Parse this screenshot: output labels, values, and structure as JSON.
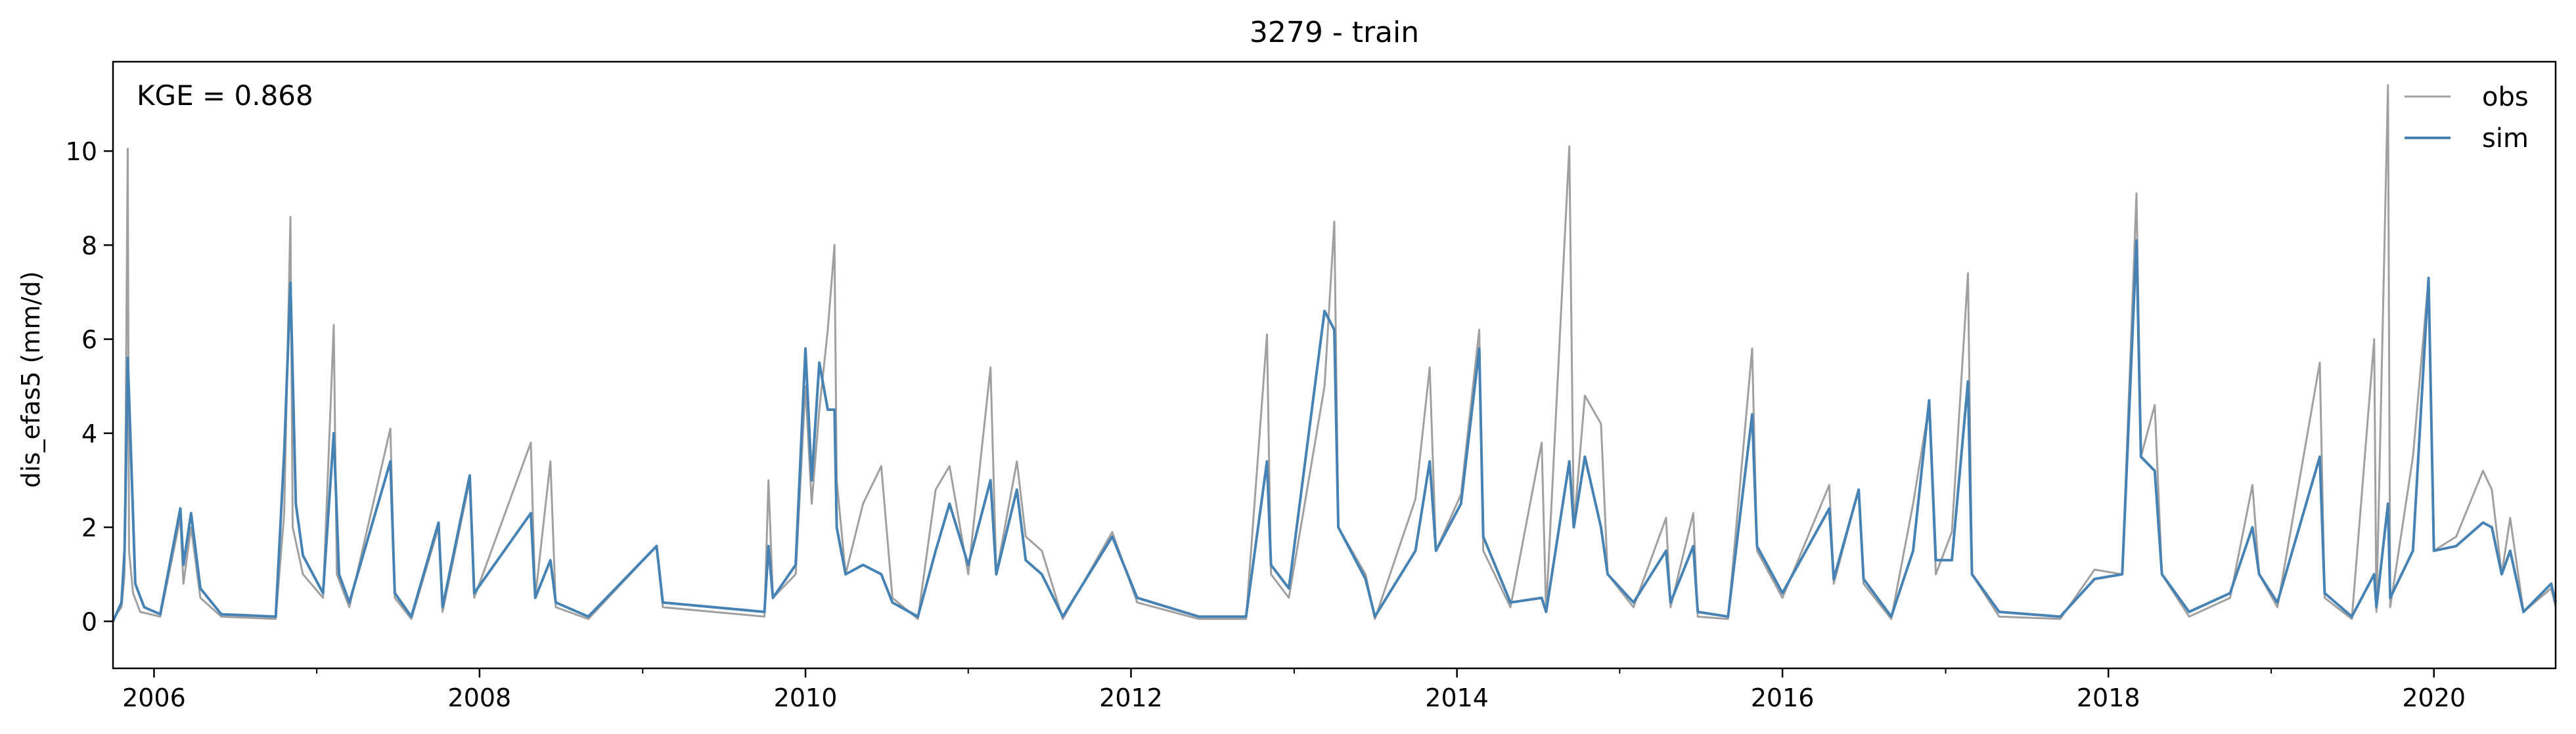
{
  "chart_data": {
    "type": "line",
    "title": "3279 - train",
    "xlabel": "",
    "ylabel": "dis_efas5 (mm/d)",
    "annotation": "KGE = 0.868",
    "x_axis": {
      "kind": "date",
      "range": [
        "2005-10-01",
        "2020-09-30"
      ],
      "ticks": [
        "2006-01-01",
        "2008-01-01",
        "2010-01-01",
        "2012-01-01",
        "2014-01-01",
        "2016-01-01",
        "2018-01-01",
        "2020-01-01"
      ],
      "tick_labels": [
        "2006",
        "2008",
        "2010",
        "2012",
        "2014",
        "2016",
        "2018",
        "2020"
      ]
    },
    "ylim": [
      -1,
      11.9
    ],
    "yticks": [
      0,
      2,
      4,
      6,
      8,
      10
    ],
    "ytick_labels": [
      "0",
      "2",
      "4",
      "6",
      "8",
      "10"
    ],
    "grid": false,
    "legend": "top-right",
    "series": [
      {
        "name": "obs",
        "color": "#a0a0a0",
        "points": [
          [
            "2005-10-01",
            0.05
          ],
          [
            "2005-10-20",
            0.3
          ],
          [
            "2005-10-27",
            1.0
          ],
          [
            "2005-11-03",
            10.05
          ],
          [
            "2005-11-06",
            1.5
          ],
          [
            "2005-11-15",
            0.6
          ],
          [
            "2005-12-01",
            0.2
          ],
          [
            "2006-01-15",
            0.1
          ],
          [
            "2006-03-01",
            2.2
          ],
          [
            "2006-03-08",
            0.8
          ],
          [
            "2006-03-25",
            2.0
          ],
          [
            "2006-04-15",
            0.5
          ],
          [
            "2006-06-01",
            0.1
          ],
          [
            "2006-10-01",
            0.05
          ],
          [
            "2006-10-20",
            2.3
          ],
          [
            "2006-11-03",
            8.6
          ],
          [
            "2006-11-08",
            2.0
          ],
          [
            "2006-12-01",
            1.0
          ],
          [
            "2007-01-15",
            0.5
          ],
          [
            "2007-02-08",
            6.3
          ],
          [
            "2007-02-15",
            1.0
          ],
          [
            "2007-03-15",
            0.3
          ],
          [
            "2007-06-15",
            4.1
          ],
          [
            "2007-06-25",
            0.5
          ],
          [
            "2007-08-01",
            0.05
          ],
          [
            "2007-10-01",
            2.0
          ],
          [
            "2007-10-10",
            0.2
          ],
          [
            "2007-12-10",
            3.0
          ],
          [
            "2007-12-20",
            0.5
          ],
          [
            "2008-04-25",
            3.8
          ],
          [
            "2008-05-05",
            0.5
          ],
          [
            "2008-06-08",
            3.4
          ],
          [
            "2008-06-20",
            0.3
          ],
          [
            "2008-09-01",
            0.05
          ],
          [
            "2009-02-01",
            1.6
          ],
          [
            "2009-02-15",
            0.3
          ],
          [
            "2009-10-01",
            0.1
          ],
          [
            "2009-10-10",
            3.0
          ],
          [
            "2009-10-20",
            0.5
          ],
          [
            "2009-12-10",
            1.0
          ],
          [
            "2010-01-01",
            5.0
          ],
          [
            "2010-01-15",
            2.5
          ],
          [
            "2010-02-01",
            4.5
          ],
          [
            "2010-02-20",
            6.2
          ],
          [
            "2010-03-07",
            8.0
          ],
          [
            "2010-03-12",
            3.0
          ],
          [
            "2010-04-01",
            1.0
          ],
          [
            "2010-05-10",
            2.5
          ],
          [
            "2010-06-20",
            3.3
          ],
          [
            "2010-07-15",
            0.5
          ],
          [
            "2010-09-10",
            0.05
          ],
          [
            "2010-10-20",
            2.8
          ],
          [
            "2010-11-20",
            3.3
          ],
          [
            "2011-01-01",
            1.0
          ],
          [
            "2011-02-20",
            5.4
          ],
          [
            "2011-03-05",
            1.0
          ],
          [
            "2011-04-20",
            3.4
          ],
          [
            "2011-05-10",
            1.8
          ],
          [
            "2011-06-15",
            1.5
          ],
          [
            "2011-08-01",
            0.05
          ],
          [
            "2011-11-20",
            1.9
          ],
          [
            "2012-01-15",
            0.4
          ],
          [
            "2012-06-01",
            0.05
          ],
          [
            "2012-09-15",
            0.05
          ],
          [
            "2012-11-01",
            6.1
          ],
          [
            "2012-11-10",
            1.0
          ],
          [
            "2012-12-20",
            0.5
          ],
          [
            "2013-03-10",
            5.0
          ],
          [
            "2013-04-01",
            8.5
          ],
          [
            "2013-04-10",
            2.0
          ],
          [
            "2013-06-10",
            1.0
          ],
          [
            "2013-07-01",
            0.05
          ],
          [
            "2013-09-30",
            2.6
          ],
          [
            "2013-11-01",
            5.4
          ],
          [
            "2013-11-15",
            1.5
          ],
          [
            "2014-01-10",
            2.7
          ],
          [
            "2014-02-20",
            6.2
          ],
          [
            "2014-03-01",
            1.5
          ],
          [
            "2014-05-01",
            0.3
          ],
          [
            "2014-07-10",
            3.8
          ],
          [
            "2014-07-20",
            0.2
          ],
          [
            "2014-09-10",
            10.1
          ],
          [
            "2014-09-20",
            2.0
          ],
          [
            "2014-10-15",
            4.8
          ],
          [
            "2014-11-20",
            4.2
          ],
          [
            "2014-12-05",
            1.0
          ],
          [
            "2015-02-01",
            0.3
          ],
          [
            "2015-04-15",
            2.2
          ],
          [
            "2015-04-25",
            0.3
          ],
          [
            "2015-06-15",
            2.3
          ],
          [
            "2015-06-25",
            0.1
          ],
          [
            "2015-09-01",
            0.05
          ],
          [
            "2015-10-25",
            5.8
          ],
          [
            "2015-11-05",
            1.5
          ],
          [
            "2016-01-01",
            0.5
          ],
          [
            "2016-04-15",
            2.9
          ],
          [
            "2016-04-25",
            0.8
          ],
          [
            "2016-06-20",
            2.8
          ],
          [
            "2016-07-01",
            0.8
          ],
          [
            "2016-09-01",
            0.05
          ],
          [
            "2016-10-20",
            2.5
          ],
          [
            "2016-11-25",
            4.6
          ],
          [
            "2016-12-10",
            1.0
          ],
          [
            "2017-01-15",
            1.9
          ],
          [
            "2017-02-20",
            7.4
          ],
          [
            "2017-03-01",
            1.0
          ],
          [
            "2017-05-01",
            0.1
          ],
          [
            "2017-09-15",
            0.05
          ],
          [
            "2017-12-01",
            1.1
          ],
          [
            "2018-02-01",
            1.0
          ],
          [
            "2018-03-05",
            9.1
          ],
          [
            "2018-03-15",
            3.5
          ],
          [
            "2018-04-15",
            4.6
          ],
          [
            "2018-05-01",
            1.0
          ],
          [
            "2018-07-01",
            0.1
          ],
          [
            "2018-10-01",
            0.5
          ],
          [
            "2018-11-20",
            2.9
          ],
          [
            "2018-12-05",
            1.0
          ],
          [
            "2019-01-15",
            0.3
          ],
          [
            "2019-04-20",
            5.5
          ],
          [
            "2019-05-01",
            0.5
          ],
          [
            "2019-07-01",
            0.05
          ],
          [
            "2019-08-20",
            6.0
          ],
          [
            "2019-08-25",
            0.2
          ],
          [
            "2019-09-20",
            11.4
          ],
          [
            "2019-09-25",
            0.3
          ],
          [
            "2019-11-15",
            3.5
          ],
          [
            "2019-12-20",
            7.3
          ],
          [
            "2020-01-01",
            1.5
          ],
          [
            "2020-02-20",
            1.8
          ],
          [
            "2020-04-20",
            3.2
          ],
          [
            "2020-05-10",
            2.8
          ],
          [
            "2020-06-01",
            1.0
          ],
          [
            "2020-06-20",
            2.2
          ],
          [
            "2020-07-20",
            0.2
          ],
          [
            "2020-09-20",
            0.7
          ],
          [
            "2020-09-30",
            0.3
          ]
        ]
      },
      {
        "name": "sim",
        "color": "#4682b4",
        "points": [
          [
            "2005-10-01",
            0.0
          ],
          [
            "2005-10-20",
            0.4
          ],
          [
            "2005-10-27",
            1.5
          ],
          [
            "2005-11-03",
            5.6
          ],
          [
            "2005-11-10",
            3.7
          ],
          [
            "2005-11-20",
            0.8
          ],
          [
            "2005-12-10",
            0.3
          ],
          [
            "2006-01-15",
            0.15
          ],
          [
            "2006-03-01",
            2.4
          ],
          [
            "2006-03-08",
            1.2
          ],
          [
            "2006-03-25",
            2.3
          ],
          [
            "2006-04-15",
            0.7
          ],
          [
            "2006-06-01",
            0.15
          ],
          [
            "2006-10-01",
            0.1
          ],
          [
            "2006-10-20",
            3.6
          ],
          [
            "2006-11-03",
            7.2
          ],
          [
            "2006-11-15",
            2.5
          ],
          [
            "2006-12-01",
            1.4
          ],
          [
            "2007-01-15",
            0.6
          ],
          [
            "2007-02-08",
            4.0
          ],
          [
            "2007-02-20",
            1.0
          ],
          [
            "2007-03-15",
            0.4
          ],
          [
            "2007-06-15",
            3.4
          ],
          [
            "2007-06-25",
            0.6
          ],
          [
            "2007-08-01",
            0.1
          ],
          [
            "2007-10-01",
            2.1
          ],
          [
            "2007-10-10",
            0.3
          ],
          [
            "2007-12-10",
            3.1
          ],
          [
            "2007-12-20",
            0.6
          ],
          [
            "2008-04-25",
            2.3
          ],
          [
            "2008-05-05",
            0.5
          ],
          [
            "2008-06-08",
            1.3
          ],
          [
            "2008-06-20",
            0.4
          ],
          [
            "2008-09-01",
            0.1
          ],
          [
            "2009-02-01",
            1.6
          ],
          [
            "2009-02-15",
            0.4
          ],
          [
            "2009-10-01",
            0.2
          ],
          [
            "2009-10-10",
            1.6
          ],
          [
            "2009-10-20",
            0.5
          ],
          [
            "2009-12-10",
            1.2
          ],
          [
            "2010-01-01",
            5.8
          ],
          [
            "2010-01-15",
            3.0
          ],
          [
            "2010-02-01",
            5.5
          ],
          [
            "2010-02-20",
            4.5
          ],
          [
            "2010-03-07",
            4.5
          ],
          [
            "2010-03-12",
            2.0
          ],
          [
            "2010-04-01",
            1.0
          ],
          [
            "2010-05-10",
            1.2
          ],
          [
            "2010-06-20",
            1.0
          ],
          [
            "2010-07-15",
            0.4
          ],
          [
            "2010-09-10",
            0.1
          ],
          [
            "2010-10-20",
            1.5
          ],
          [
            "2010-11-20",
            2.5
          ],
          [
            "2011-01-01",
            1.2
          ],
          [
            "2011-02-20",
            3.0
          ],
          [
            "2011-03-05",
            1.0
          ],
          [
            "2011-04-20",
            2.8
          ],
          [
            "2011-05-10",
            1.3
          ],
          [
            "2011-06-15",
            1.0
          ],
          [
            "2011-08-01",
            0.1
          ],
          [
            "2011-11-20",
            1.8
          ],
          [
            "2012-01-15",
            0.5
          ],
          [
            "2012-06-01",
            0.1
          ],
          [
            "2012-09-15",
            0.1
          ],
          [
            "2012-11-01",
            3.4
          ],
          [
            "2012-11-10",
            1.2
          ],
          [
            "2012-12-20",
            0.7
          ],
          [
            "2013-03-10",
            6.6
          ],
          [
            "2013-04-01",
            6.2
          ],
          [
            "2013-04-10",
            2.0
          ],
          [
            "2013-06-10",
            0.9
          ],
          [
            "2013-07-01",
            0.1
          ],
          [
            "2013-09-30",
            1.5
          ],
          [
            "2013-11-01",
            3.4
          ],
          [
            "2013-11-15",
            1.5
          ],
          [
            "2014-01-10",
            2.5
          ],
          [
            "2014-02-20",
            5.8
          ],
          [
            "2014-03-01",
            1.8
          ],
          [
            "2014-05-01",
            0.4
          ],
          [
            "2014-07-10",
            0.5
          ],
          [
            "2014-07-20",
            0.2
          ],
          [
            "2014-09-10",
            3.4
          ],
          [
            "2014-09-20",
            2.0
          ],
          [
            "2014-10-15",
            3.5
          ],
          [
            "2014-11-20",
            2.0
          ],
          [
            "2014-12-05",
            1.0
          ],
          [
            "2015-02-01",
            0.4
          ],
          [
            "2015-04-15",
            1.5
          ],
          [
            "2015-04-25",
            0.4
          ],
          [
            "2015-06-15",
            1.6
          ],
          [
            "2015-06-25",
            0.2
          ],
          [
            "2015-09-01",
            0.1
          ],
          [
            "2015-10-25",
            4.4
          ],
          [
            "2015-11-05",
            1.6
          ],
          [
            "2016-01-01",
            0.6
          ],
          [
            "2016-04-15",
            2.4
          ],
          [
            "2016-04-25",
            0.9
          ],
          [
            "2016-06-20",
            2.8
          ],
          [
            "2016-07-01",
            0.9
          ],
          [
            "2016-09-01",
            0.1
          ],
          [
            "2016-10-20",
            1.5
          ],
          [
            "2016-11-25",
            4.7
          ],
          [
            "2016-12-10",
            1.3
          ],
          [
            "2017-01-15",
            1.3
          ],
          [
            "2017-02-20",
            5.1
          ],
          [
            "2017-03-01",
            1.0
          ],
          [
            "2017-05-01",
            0.2
          ],
          [
            "2017-09-15",
            0.1
          ],
          [
            "2017-12-01",
            0.9
          ],
          [
            "2018-02-01",
            1.0
          ],
          [
            "2018-03-05",
            8.1
          ],
          [
            "2018-03-15",
            3.5
          ],
          [
            "2018-04-15",
            3.2
          ],
          [
            "2018-05-01",
            1.0
          ],
          [
            "2018-07-01",
            0.2
          ],
          [
            "2018-10-01",
            0.6
          ],
          [
            "2018-11-20",
            2.0
          ],
          [
            "2018-12-05",
            1.0
          ],
          [
            "2019-01-15",
            0.4
          ],
          [
            "2019-04-20",
            3.5
          ],
          [
            "2019-05-01",
            0.6
          ],
          [
            "2019-07-01",
            0.1
          ],
          [
            "2019-08-20",
            1.0
          ],
          [
            "2019-08-25",
            0.3
          ],
          [
            "2019-09-20",
            2.5
          ],
          [
            "2019-09-25",
            0.5
          ],
          [
            "2019-11-15",
            1.5
          ],
          [
            "2019-12-20",
            7.3
          ],
          [
            "2020-01-01",
            1.5
          ],
          [
            "2020-02-20",
            1.6
          ],
          [
            "2020-04-20",
            2.1
          ],
          [
            "2020-05-10",
            2.0
          ],
          [
            "2020-06-01",
            1.0
          ],
          [
            "2020-06-20",
            1.5
          ],
          [
            "2020-07-20",
            0.2
          ],
          [
            "2020-09-20",
            0.8
          ],
          [
            "2020-09-30",
            0.4
          ]
        ]
      }
    ]
  }
}
